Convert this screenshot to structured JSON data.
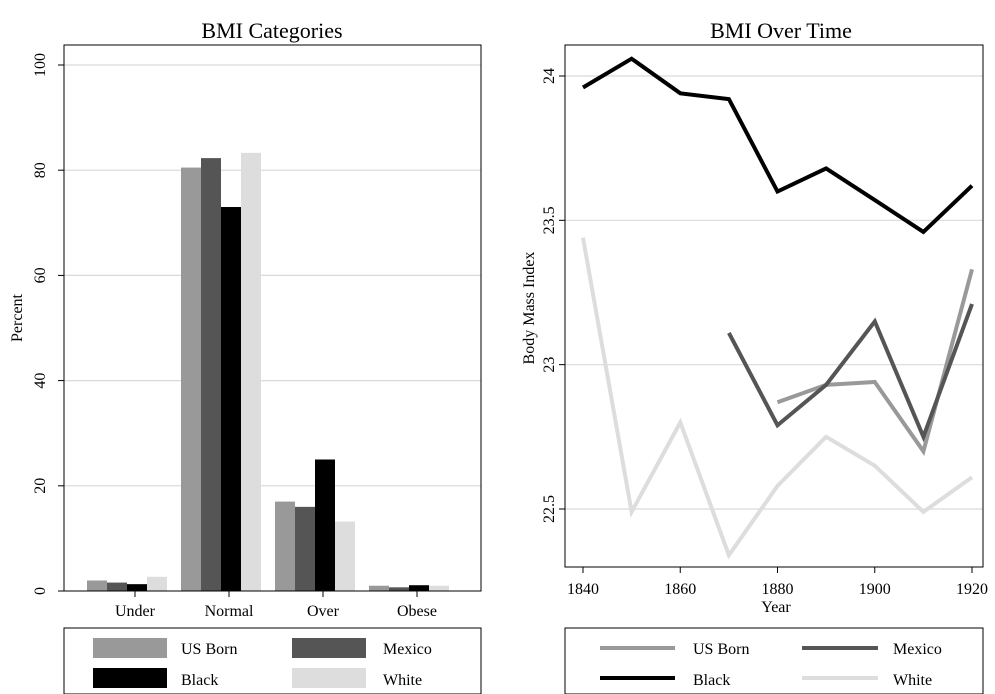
{
  "chart_data": [
    {
      "type": "bar",
      "title": "BMI Categories",
      "xlabel": "",
      "ylabel": "Percent",
      "ylim": [
        0,
        100
      ],
      "yticks": [
        0,
        20,
        40,
        60,
        80,
        100
      ],
      "grid": true,
      "legend_position": "bottom",
      "categories": [
        "Under",
        "Normal",
        "Over",
        "Obese"
      ],
      "series": [
        {
          "name": "US Born",
          "color": "#999999",
          "values": [
            2.0,
            80.5,
            17.0,
            1.0
          ]
        },
        {
          "name": "Mexico",
          "color": "#555555",
          "values": [
            1.6,
            82.3,
            16.0,
            0.7
          ]
        },
        {
          "name": "Black",
          "color": "#000000",
          "values": [
            1.3,
            73.0,
            25.0,
            1.1
          ]
        },
        {
          "name": "White",
          "color": "#dddddd",
          "values": [
            2.7,
            83.3,
            13.2,
            1.0
          ]
        }
      ]
    },
    {
      "type": "line",
      "title": "BMI Over Time",
      "xlabel": "Year",
      "ylabel": "Body Mass Index",
      "xlim": [
        1840,
        1920
      ],
      "ylim": [
        22.32,
        24.1
      ],
      "xticks": [
        1840,
        1860,
        1880,
        1900,
        1920
      ],
      "yticks": [
        22.5,
        23,
        23.5,
        24
      ],
      "ytick_labels": [
        "22.5",
        "23",
        "23.5",
        "24"
      ],
      "grid": true,
      "legend_position": "bottom",
      "series": [
        {
          "name": "US Born",
          "color": "#999999",
          "x": [
            1880,
            1890,
            1900,
            1910,
            1920
          ],
          "y": [
            22.87,
            22.93,
            22.94,
            22.7,
            23.33
          ]
        },
        {
          "name": "Mexico",
          "color": "#555555",
          "x": [
            1870,
            1880,
            1890,
            1900,
            1910,
            1920
          ],
          "y": [
            23.11,
            22.79,
            22.93,
            23.15,
            22.75,
            23.21
          ]
        },
        {
          "name": "Black",
          "color": "#000000",
          "x": [
            1840,
            1850,
            1860,
            1870,
            1880,
            1890,
            1900,
            1910,
            1920
          ],
          "y": [
            23.96,
            24.06,
            23.94,
            23.92,
            23.6,
            23.68,
            23.57,
            23.46,
            23.62
          ]
        },
        {
          "name": "White",
          "color": "#dddddd",
          "x": [
            1840,
            1850,
            1860,
            1870,
            1880,
            1890,
            1900,
            1910,
            1920
          ],
          "y": [
            23.44,
            22.49,
            22.8,
            22.34,
            22.58,
            22.75,
            22.65,
            22.49,
            22.61
          ]
        }
      ]
    }
  ]
}
